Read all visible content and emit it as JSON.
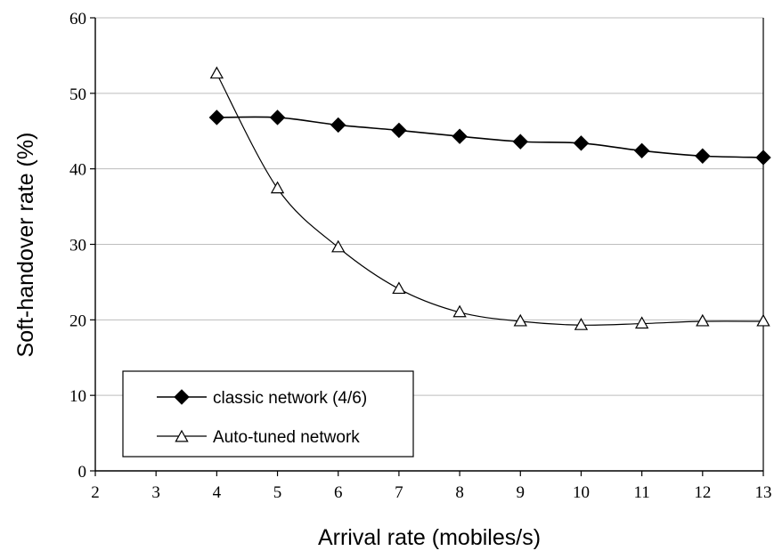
{
  "chart_data": {
    "type": "line",
    "xlabel": "Arrival rate (mobiles/s)",
    "ylabel": "Soft-handover rate (%)",
    "xlim": [
      2,
      13
    ],
    "ylim": [
      0,
      60
    ],
    "x_ticks": [
      2,
      3,
      4,
      5,
      6,
      7,
      8,
      9,
      10,
      11,
      12,
      13
    ],
    "y_ticks": [
      0,
      10,
      20,
      30,
      40,
      50,
      60
    ],
    "grid": "horizontal",
    "legend_position": "bottom-left",
    "series": [
      {
        "name": "classic network (4/6)",
        "marker": "diamond-filled",
        "color": "#000000",
        "x": [
          4,
          5,
          6,
          7,
          8,
          9,
          10,
          11,
          12,
          13
        ],
        "y": [
          46.8,
          46.8,
          45.8,
          45.1,
          44.3,
          43.6,
          43.4,
          42.4,
          41.7,
          41.5
        ]
      },
      {
        "name": "Auto-tuned network",
        "marker": "triangle-open",
        "color": "#000000",
        "x": [
          4,
          5,
          6,
          7,
          8,
          9,
          10,
          11,
          12,
          13
        ],
        "y": [
          52.6,
          37.4,
          29.6,
          24.1,
          21.0,
          19.8,
          19.3,
          19.5,
          19.8,
          19.8
        ]
      }
    ]
  }
}
